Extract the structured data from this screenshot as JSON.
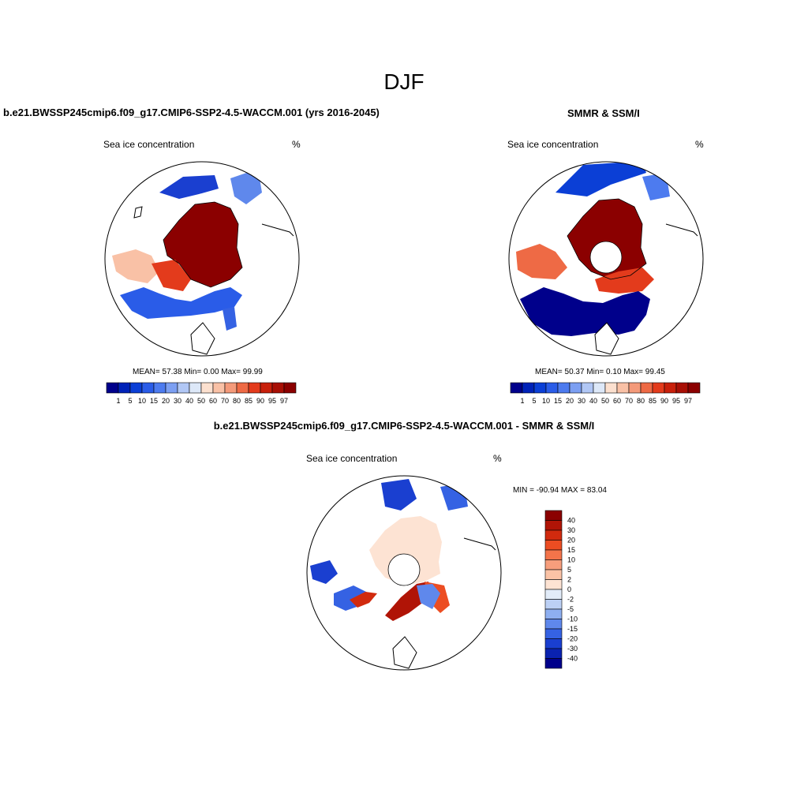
{
  "figure": {
    "title": "DJF"
  },
  "panels": {
    "model": {
      "title": "b.e21.BWSSP245cmip6.f09_g17.CMIP6-SSP2-4.5-WACCM.001 (yrs 2016-2045)",
      "left_label": "Sea ice concentration",
      "right_label": "%",
      "stats": "MEAN=  57.38  Min=   0.00  Max=  99.99"
    },
    "obs": {
      "title": "SMMR & SSM/I",
      "left_label": "Sea ice concentration",
      "right_label": "%",
      "stats": "MEAN=  50.37  Min=   0.10  Max=  99.45"
    },
    "diff": {
      "title": "b.e21.BWSSP245cmip6.f09_g17.CMIP6-SSP2-4.5-WACCM.001 - SMMR & SSM/I",
      "left_label": "Sea ice concentration",
      "right_label": "%",
      "stats": "MIN = -90.94 MAX =  83.04"
    }
  },
  "colorbars": {
    "concentration": {
      "levels": [
        "1",
        "5",
        "10",
        "15",
        "20",
        "30",
        "40",
        "50",
        "60",
        "70",
        "80",
        "85",
        "90",
        "95",
        "97"
      ],
      "colors": [
        "#00008b",
        "#0022b8",
        "#0b3fd6",
        "#2a5ce8",
        "#4d7bef",
        "#7c9ff2",
        "#b1c7f5",
        "#dde8f8",
        "#fce0cf",
        "#f9c1a6",
        "#f49a7a",
        "#ee6a45",
        "#e33b1c",
        "#c8200b",
        "#a80f05",
        "#8b0000"
      ]
    },
    "difference": {
      "levels": [
        "40",
        "30",
        "20",
        "15",
        "10",
        "5",
        "2",
        "0",
        "-2",
        "-5",
        "-10",
        "-15",
        "-20",
        "-30",
        "-40"
      ],
      "colors": [
        "#8b0000",
        "#b01406",
        "#d12a0e",
        "#ec4d22",
        "#f4744a",
        "#f79e7c",
        "#fbc3a6",
        "#fde3d3",
        "#e2ecf9",
        "#bcd0f5",
        "#8eaff1",
        "#5f88ec",
        "#3562e3",
        "#1a3fd0",
        "#0a22b0",
        "#00008b"
      ]
    }
  }
}
